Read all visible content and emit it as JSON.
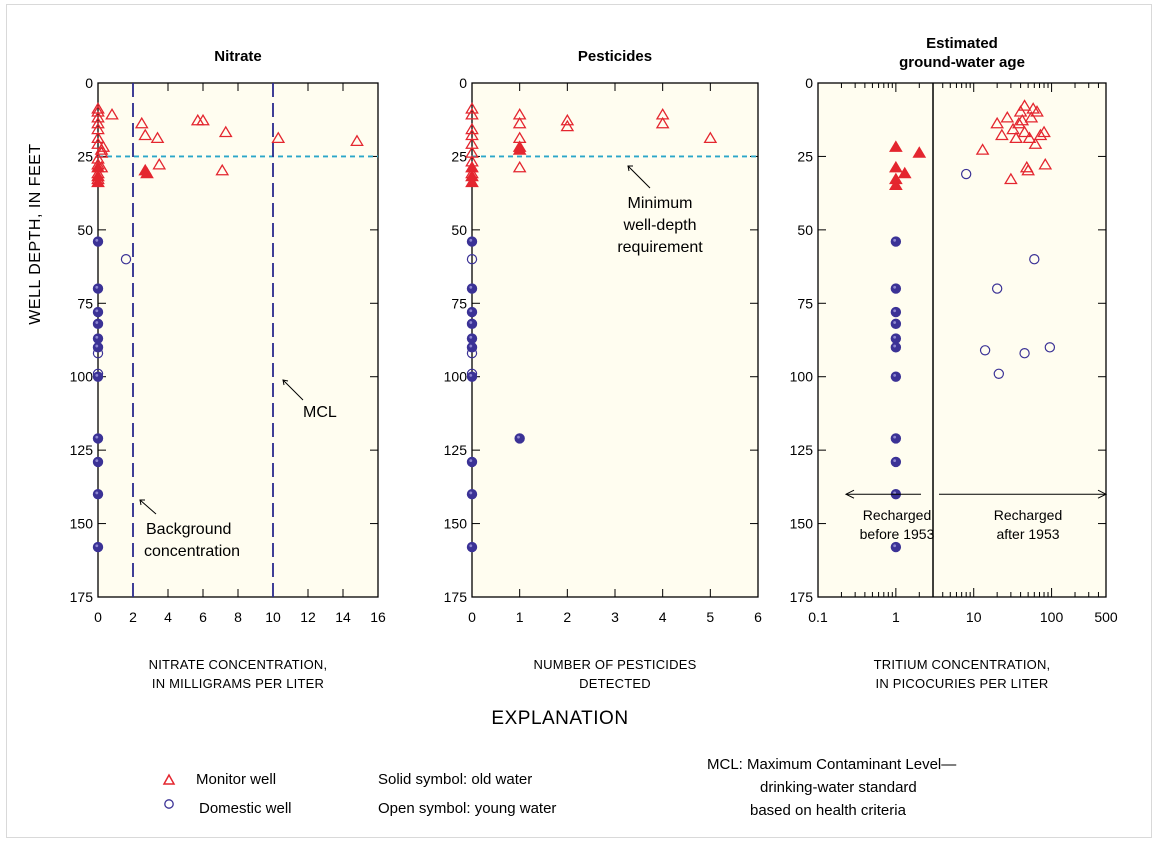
{
  "ylabel": "WELL DEPTH, IN FEET",
  "chart_data": [
    {
      "type": "scatter",
      "title": "Nitrate",
      "xlabel": "NITRATE CONCENTRATION,\nIN MILLIGRAMS PER LITER",
      "ylabel": "WELL DEPTH, IN FEET",
      "xlim": [
        0,
        16
      ],
      "ylim": [
        0,
        175
      ],
      "y_inverted": true,
      "xticks": [
        "0",
        "2",
        "4",
        "6",
        "8",
        "10",
        "12",
        "14",
        "16"
      ],
      "yticks": [
        "0",
        "25",
        "50",
        "75",
        "100",
        "125",
        "150",
        "175"
      ],
      "annotations": [
        {
          "text": "MCL",
          "x": 10
        },
        {
          "text": "Background\nconcentration",
          "x": 2
        },
        {
          "text": "Minimum well-depth requirement",
          "y": 25
        }
      ],
      "series": [
        {
          "name": "Monitor well, young water",
          "marker": "triangle",
          "filled": false,
          "points": [
            [
              0,
              9
            ],
            [
              0,
              10
            ],
            [
              0,
              12
            ],
            [
              0,
              14
            ],
            [
              0,
              16
            ],
            [
              0,
              19
            ],
            [
              0,
              21
            ],
            [
              0.2,
              23
            ],
            [
              0.2,
              24
            ],
            [
              0,
              26
            ],
            [
              0,
              28
            ],
            [
              0,
              31
            ],
            [
              0,
              33
            ],
            [
              0.2,
              29
            ],
            [
              0.3,
              22
            ],
            [
              0.8,
              11
            ],
            [
              2.5,
              14
            ],
            [
              2.7,
              18
            ],
            [
              3.4,
              19
            ],
            [
              3.5,
              28
            ],
            [
              5.7,
              13
            ],
            [
              6.0,
              13
            ],
            [
              7.1,
              30
            ],
            [
              7.3,
              17
            ],
            [
              10.3,
              19
            ],
            [
              14.8,
              20
            ]
          ]
        },
        {
          "name": "Monitor well, old water",
          "marker": "triangle",
          "filled": true,
          "points": [
            [
              0,
              29
            ],
            [
              0,
              32
            ],
            [
              0,
              34
            ],
            [
              2.7,
              30
            ],
            [
              2.8,
              31
            ]
          ]
        },
        {
          "name": "Domestic well, old water",
          "marker": "circle",
          "filled": true,
          "points": [
            [
              0,
              54
            ],
            [
              0,
              70
            ],
            [
              0,
              78
            ],
            [
              0,
              82
            ],
            [
              0,
              87
            ],
            [
              0,
              90
            ],
            [
              0,
              100
            ],
            [
              0,
              121
            ],
            [
              0,
              129
            ],
            [
              0,
              140
            ],
            [
              0,
              158
            ]
          ]
        },
        {
          "name": "Domestic well, young water",
          "marker": "circle",
          "filled": false,
          "points": [
            [
              1.6,
              60
            ],
            [
              0,
              92
            ],
            [
              0,
              99
            ]
          ]
        }
      ]
    },
    {
      "type": "scatter",
      "title": "Pesticides",
      "xlabel": "NUMBER OF PESTICIDES\nDETECTED",
      "ylabel": "WELL DEPTH, IN FEET",
      "xlim": [
        0,
        6
      ],
      "ylim": [
        0,
        175
      ],
      "y_inverted": true,
      "xticks": [
        "0",
        "1",
        "2",
        "3",
        "4",
        "5",
        "6"
      ],
      "yticks": [
        "0",
        "25",
        "50",
        "75",
        "100",
        "125",
        "150",
        "175"
      ],
      "annotations": [
        {
          "text": "Minimum\nwell-depth\nrequirement",
          "y": 25
        }
      ],
      "series": [
        {
          "name": "Monitor well, young water",
          "marker": "triangle",
          "filled": false,
          "points": [
            [
              0,
              9
            ],
            [
              0,
              11
            ],
            [
              0,
              16
            ],
            [
              0,
              18
            ],
            [
              0,
              21
            ],
            [
              0,
              24
            ],
            [
              0,
              27
            ],
            [
              0,
              31
            ],
            [
              1,
              11
            ],
            [
              1,
              14
            ],
            [
              1,
              19
            ],
            [
              1,
              29
            ],
            [
              2,
              13
            ],
            [
              2,
              15
            ],
            [
              4,
              11
            ],
            [
              4,
              14
            ],
            [
              5,
              19
            ]
          ]
        },
        {
          "name": "Monitor well, old water",
          "marker": "triangle",
          "filled": true,
          "points": [
            [
              0,
              29
            ],
            [
              0,
              32
            ],
            [
              0,
              34
            ],
            [
              1,
              22
            ],
            [
              1,
              23
            ]
          ]
        },
        {
          "name": "Domestic well, old water",
          "marker": "circle",
          "filled": true,
          "points": [
            [
              0,
              54
            ],
            [
              0,
              70
            ],
            [
              0,
              78
            ],
            [
              0,
              82
            ],
            [
              0,
              87
            ],
            [
              0,
              90
            ],
            [
              0,
              100
            ],
            [
              1,
              121
            ],
            [
              0,
              129
            ],
            [
              0,
              140
            ],
            [
              0,
              158
            ]
          ]
        },
        {
          "name": "Domestic well, young water",
          "marker": "circle",
          "filled": false,
          "points": [
            [
              0,
              60
            ],
            [
              0,
              92
            ],
            [
              0,
              99
            ]
          ]
        }
      ]
    },
    {
      "type": "scatter",
      "title": "Estimated\nground-water age",
      "xlabel": "TRITIUM CONCENTRATION,\nIN PICOCURIES PER LITER",
      "ylabel": "WELL DEPTH, IN FEET",
      "xscale": "log",
      "xlim": [
        0.1,
        500
      ],
      "ylim": [
        0,
        175
      ],
      "y_inverted": true,
      "xticks": [
        "0.1",
        "1",
        "10",
        "100",
        "500"
      ],
      "yticks": [
        "0",
        "25",
        "50",
        "75",
        "100",
        "125",
        "150",
        "175"
      ],
      "divider_x": 3,
      "annotations": [
        {
          "text": "Recharged\nbefore 1953",
          "y": 140
        },
        {
          "text": "Recharged\nafter 1953",
          "y": 140
        }
      ],
      "series": [
        {
          "name": "Monitor well, young water",
          "marker": "triangle",
          "filled": false,
          "points": [
            [
              13,
              23
            ],
            [
              20,
              14
            ],
            [
              23,
              18
            ],
            [
              27,
              12
            ],
            [
              30,
              33
            ],
            [
              32,
              16
            ],
            [
              35,
              19
            ],
            [
              38,
              14
            ],
            [
              40,
              10
            ],
            [
              42,
              13
            ],
            [
              45,
              8
            ],
            [
              45,
              17
            ],
            [
              48,
              29
            ],
            [
              50,
              30
            ],
            [
              52,
              19
            ],
            [
              55,
              12
            ],
            [
              58,
              9
            ],
            [
              62,
              21
            ],
            [
              65,
              10
            ],
            [
              72,
              18
            ],
            [
              80,
              17
            ],
            [
              83,
              28
            ]
          ]
        },
        {
          "name": "Monitor well, old water",
          "marker": "triangle",
          "filled": true,
          "points": [
            [
              1,
              22
            ],
            [
              1,
              29
            ],
            [
              1,
              33
            ],
            [
              1,
              35
            ],
            [
              1.3,
              31
            ],
            [
              2,
              24
            ]
          ]
        },
        {
          "name": "Domestic well, old water",
          "marker": "circle",
          "filled": true,
          "points": [
            [
              1,
              54
            ],
            [
              1,
              70
            ],
            [
              1,
              78
            ],
            [
              1,
              82
            ],
            [
              1,
              87
            ],
            [
              1,
              90
            ],
            [
              1,
              100
            ],
            [
              1,
              121
            ],
            [
              1,
              129
            ],
            [
              1,
              140
            ],
            [
              1,
              158
            ]
          ]
        },
        {
          "name": "Domestic well, young water",
          "marker": "circle",
          "filled": false,
          "points": [
            [
              8,
              31
            ],
            [
              60,
              60
            ],
            [
              20,
              70
            ],
            [
              14,
              91
            ],
            [
              45,
              92
            ],
            [
              95,
              90
            ],
            [
              21,
              99
            ]
          ]
        }
      ]
    }
  ],
  "explanation": {
    "heading": "EXPLANATION",
    "monitor_label": "Monitor well",
    "domestic_label": "Domestic well",
    "solid_text": "Solid symbol: old water",
    "open_text": "Open symbol: young water",
    "mcl_line1": "MCL: Maximum Contaminant Level—",
    "mcl_line2": "drinking-water standard",
    "mcl_line3": "based on health criteria"
  },
  "colors": {
    "monitor": "#e4262f",
    "domestic": "#3b3296",
    "plot_bg": "#fffdf0",
    "dashed_vertical": "#2a2a8c",
    "dashed_horizontal": "#2ba6c9"
  }
}
